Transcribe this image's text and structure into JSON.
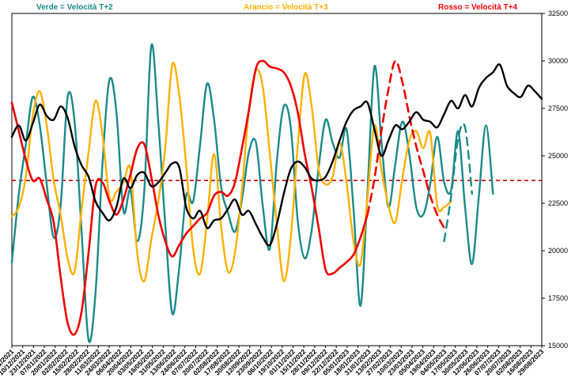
{
  "chart_data": {
    "type": "line",
    "title": "",
    "xlabel": "",
    "ylabel": "",
    "ylim": [
      15000,
      32500
    ],
    "yticks": [
      15000,
      17500,
      20000,
      22500,
      25000,
      27500,
      30000,
      32500
    ],
    "grid": false,
    "legend_position": "top",
    "reference_line": {
      "value": 23700,
      "color": "#cc0000",
      "style": "dashed"
    },
    "x_labels": [
      "29/11/2021",
      "10/12/2021",
      "23/12/2021",
      "07/01/2022",
      "20/01/2022",
      "02/02/2022",
      "15/02/2022",
      "28/02/2022",
      "11/03/2022",
      "24/03/2022",
      "06/04/2022",
      "20/04/2022",
      "03/05/2022",
      "16/05/2022",
      "31/05/2022",
      "13/06/2022",
      "24/06/2022",
      "07/07/2022",
      "20/07/2022",
      "02/08/2022",
      "17/08/2022",
      "30/08/2022",
      "12/09/2022",
      "23/09/2022",
      "06/10/2022",
      "19/10/2022",
      "01/11/2022",
      "15/11/2022",
      "28/11/2022",
      "09/12/2022",
      "22/12/2022",
      "05/01/2023",
      "18/01/2023",
      "31/01/2023",
      "13/02/2023",
      "27/02/2023",
      "10/03/2023",
      "23/03/2023",
      "05/04/2023",
      "19/04/2023",
      "04/05/2023",
      "17/05/2023",
      "30/05/2023",
      "12/06/2023",
      "26/06/2023",
      "07/07/2023",
      "20/07/2023",
      "02/08/2023",
      "16/08/2023",
      "29/08/2023"
    ],
    "series": [
      {
        "name": "",
        "color": "#000000",
        "style": "solid",
        "width": 2.4,
        "points": [
          [
            0,
            26000
          ],
          [
            1,
            26600
          ],
          [
            2,
            25800
          ],
          [
            3,
            26700
          ],
          [
            4,
            27700
          ],
          [
            5,
            27100
          ],
          [
            6,
            26900
          ],
          [
            7,
            27600
          ],
          [
            8,
            27000
          ],
          [
            9,
            25500
          ],
          [
            10,
            24500
          ],
          [
            11,
            23900
          ],
          [
            12,
            22600
          ],
          [
            13,
            22000
          ],
          [
            14,
            21600
          ],
          [
            15,
            22300
          ],
          [
            16,
            23800
          ],
          [
            17,
            23300
          ],
          [
            18,
            24000
          ],
          [
            19,
            24100
          ],
          [
            20,
            23400
          ],
          [
            21,
            23600
          ],
          [
            22,
            24100
          ],
          [
            23,
            24600
          ],
          [
            24,
            24400
          ],
          [
            25,
            22300
          ],
          [
            26,
            21700
          ],
          [
            27,
            22100
          ],
          [
            28,
            21200
          ],
          [
            29,
            21600
          ],
          [
            30,
            21700
          ],
          [
            31,
            22200
          ],
          [
            32,
            22700
          ],
          [
            33,
            21900
          ],
          [
            34,
            22100
          ],
          [
            35,
            21400
          ],
          [
            36,
            20700
          ],
          [
            37,
            20300
          ],
          [
            38,
            21400
          ],
          [
            39,
            23000
          ],
          [
            40,
            24300
          ],
          [
            41,
            24700
          ],
          [
            42,
            24400
          ],
          [
            43,
            23800
          ],
          [
            44,
            23700
          ],
          [
            45,
            23900
          ],
          [
            46,
            24700
          ],
          [
            47,
            25800
          ],
          [
            48,
            26800
          ],
          [
            49,
            27400
          ],
          [
            50,
            27600
          ],
          [
            51,
            27800
          ],
          [
            52,
            26400
          ],
          [
            53,
            25000
          ],
          [
            54,
            25800
          ],
          [
            55,
            26600
          ],
          [
            56,
            26400
          ],
          [
            57,
            26800
          ],
          [
            58,
            27300
          ],
          [
            59,
            26900
          ],
          [
            60,
            26800
          ],
          [
            61,
            26500
          ],
          [
            62,
            27200
          ],
          [
            63,
            27900
          ],
          [
            64,
            27500
          ],
          [
            65,
            28200
          ],
          [
            66,
            27600
          ],
          [
            67,
            28600
          ],
          [
            68,
            29100
          ],
          [
            69,
            29400
          ],
          [
            70,
            29800
          ],
          [
            71,
            28700
          ],
          [
            72,
            28300
          ],
          [
            73,
            28100
          ],
          [
            74,
            28700
          ],
          [
            75,
            28400
          ],
          [
            76,
            28000
          ]
        ]
      },
      {
        "name": "Verde = Velocità T+2",
        "color": "#1a8a8a",
        "style": "solid",
        "width": 2.4,
        "points": [
          [
            0,
            19400
          ],
          [
            1,
            23000
          ],
          [
            2,
            25600
          ],
          [
            3,
            28100
          ],
          [
            4,
            26600
          ],
          [
            5,
            23500
          ],
          [
            6,
            20700
          ],
          [
            7,
            22400
          ],
          [
            8,
            28100
          ],
          [
            9,
            26800
          ],
          [
            10,
            21000
          ],
          [
            11,
            15300
          ],
          [
            12,
            17800
          ],
          [
            13,
            24600
          ],
          [
            14,
            29000
          ],
          [
            15,
            27300
          ],
          [
            16,
            22100
          ],
          [
            17,
            23200
          ],
          [
            18,
            20500
          ],
          [
            19,
            23200
          ],
          [
            20,
            30800
          ],
          [
            21,
            26800
          ],
          [
            22,
            21400
          ],
          [
            23,
            16700
          ],
          [
            24,
            19100
          ],
          [
            25,
            22900
          ],
          [
            26,
            22600
          ],
          [
            27,
            25600
          ],
          [
            28,
            28800
          ],
          [
            29,
            26900
          ],
          [
            30,
            23400
          ],
          [
            31,
            22000
          ],
          [
            32,
            21000
          ],
          [
            33,
            22700
          ],
          [
            34,
            25200
          ],
          [
            35,
            25700
          ],
          [
            36,
            22300
          ],
          [
            37,
            20100
          ],
          [
            38,
            24700
          ],
          [
            39,
            27600
          ],
          [
            40,
            26500
          ],
          [
            41,
            21600
          ],
          [
            42,
            19600
          ],
          [
            43,
            21100
          ],
          [
            44,
            24400
          ],
          [
            45,
            26900
          ],
          [
            46,
            25700
          ],
          [
            47,
            24900
          ],
          [
            48,
            26400
          ],
          [
            49,
            22200
          ],
          [
            50,
            17100
          ],
          [
            51,
            23100
          ],
          [
            52,
            29700
          ],
          [
            53,
            25800
          ],
          [
            54,
            22300
          ],
          [
            55,
            24600
          ],
          [
            56,
            26800
          ],
          [
            57,
            25100
          ],
          [
            58,
            22300
          ],
          [
            59,
            21900
          ],
          [
            60,
            23500
          ],
          [
            61,
            26000
          ],
          [
            62,
            23600
          ],
          [
            63,
            23200
          ],
          [
            64,
            26300
          ],
          [
            65,
            22300
          ],
          [
            66,
            19300
          ],
          [
            67,
            23000
          ],
          [
            68,
            26600
          ],
          [
            69,
            23000
          ]
        ]
      },
      {
        "name": "Arancio = Velocità T+3",
        "color": "#ffb000",
        "style": "solid",
        "width": 2.4,
        "points": [
          [
            0,
            21800
          ],
          [
            1,
            22300
          ],
          [
            2,
            23900
          ],
          [
            3,
            27100
          ],
          [
            4,
            28400
          ],
          [
            5,
            26600
          ],
          [
            6,
            23700
          ],
          [
            7,
            21900
          ],
          [
            8,
            19600
          ],
          [
            9,
            18900
          ],
          [
            10,
            22200
          ],
          [
            11,
            25200
          ],
          [
            12,
            27900
          ],
          [
            13,
            26100
          ],
          [
            14,
            22800
          ],
          [
            15,
            23100
          ],
          [
            16,
            23600
          ],
          [
            17,
            24300
          ],
          [
            18,
            19800
          ],
          [
            19,
            18400
          ],
          [
            20,
            20600
          ],
          [
            21,
            22600
          ],
          [
            22,
            25400
          ],
          [
            23,
            29800
          ],
          [
            24,
            28200
          ],
          [
            25,
            24500
          ],
          [
            26,
            20100
          ],
          [
            27,
            18800
          ],
          [
            28,
            21600
          ],
          [
            29,
            25100
          ],
          [
            30,
            21300
          ],
          [
            31,
            18900
          ],
          [
            32,
            19900
          ],
          [
            33,
            23200
          ],
          [
            34,
            27400
          ],
          [
            35,
            29500
          ],
          [
            36,
            28600
          ],
          [
            37,
            25100
          ],
          [
            38,
            21400
          ],
          [
            39,
            18400
          ],
          [
            40,
            20700
          ],
          [
            41,
            25500
          ],
          [
            42,
            29300
          ],
          [
            43,
            27600
          ],
          [
            44,
            24300
          ],
          [
            45,
            23500
          ],
          [
            46,
            23900
          ],
          [
            47,
            25700
          ],
          [
            48,
            23600
          ],
          [
            49,
            20500
          ],
          [
            50,
            19300
          ],
          [
            51,
            22800
          ],
          [
            52,
            26600
          ],
          [
            53,
            24300
          ],
          [
            54,
            22400
          ],
          [
            55,
            21500
          ],
          [
            56,
            23800
          ],
          [
            57,
            25800
          ],
          [
            58,
            26300
          ],
          [
            59,
            25400
          ],
          [
            60,
            26200
          ],
          [
            61,
            22400
          ],
          [
            62,
            22300
          ],
          [
            63,
            22600
          ]
        ]
      },
      {
        "name": "Rosso = Velocità T+4",
        "color": "#ee0000",
        "style": "solid",
        "width": 2.6,
        "points": [
          [
            0,
            27800
          ],
          [
            1,
            26300
          ],
          [
            2,
            24800
          ],
          [
            3,
            23700
          ],
          [
            4,
            23800
          ],
          [
            5,
            22700
          ],
          [
            6,
            21500
          ],
          [
            7,
            18600
          ],
          [
            8,
            16200
          ],
          [
            9,
            15600
          ],
          [
            10,
            16800
          ],
          [
            11,
            19900
          ],
          [
            12,
            23400
          ],
          [
            13,
            23600
          ],
          [
            14,
            22600
          ],
          [
            15,
            21900
          ],
          [
            16,
            22700
          ],
          [
            17,
            24000
          ],
          [
            18,
            25400
          ],
          [
            19,
            25600
          ],
          [
            20,
            23900
          ],
          [
            21,
            21900
          ],
          [
            22,
            20500
          ],
          [
            23,
            19700
          ],
          [
            24,
            20300
          ],
          [
            25,
            20900
          ],
          [
            26,
            21300
          ],
          [
            27,
            21700
          ],
          [
            28,
            22000
          ],
          [
            29,
            22900
          ],
          [
            30,
            23100
          ],
          [
            31,
            22900
          ],
          [
            32,
            23600
          ],
          [
            33,
            25400
          ],
          [
            34,
            27400
          ],
          [
            35,
            29600
          ],
          [
            36,
            30000
          ],
          [
            37,
            29700
          ],
          [
            38,
            29600
          ],
          [
            39,
            29400
          ],
          [
            40,
            28700
          ],
          [
            41,
            27300
          ],
          [
            42,
            25100
          ],
          [
            43,
            23300
          ],
          [
            44,
            21200
          ],
          [
            45,
            19000
          ],
          [
            46,
            18800
          ],
          [
            47,
            19100
          ],
          [
            48,
            19400
          ],
          [
            49,
            19800
          ],
          [
            50,
            20700
          ],
          [
            51,
            21900
          ]
        ]
      },
      {
        "name": "",
        "color": "#ee0000",
        "style": "dashed",
        "width": 2.6,
        "points": [
          [
            51,
            21900
          ],
          [
            52,
            23800
          ],
          [
            53,
            26300
          ],
          [
            54,
            28500
          ],
          [
            55,
            30000
          ],
          [
            56,
            28900
          ],
          [
            57,
            27100
          ],
          [
            58,
            25500
          ],
          [
            59,
            24200
          ],
          [
            60,
            22900
          ],
          [
            61,
            21900
          ],
          [
            62,
            21200
          ]
        ]
      },
      {
        "name": "",
        "color": "#1a8a8a",
        "style": "dashed",
        "width": 2.4,
        "points": [
          [
            62,
            20500
          ],
          [
            63,
            22900
          ],
          [
            64,
            25900
          ],
          [
            65,
            26500
          ],
          [
            66,
            23000
          ]
        ]
      }
    ]
  }
}
